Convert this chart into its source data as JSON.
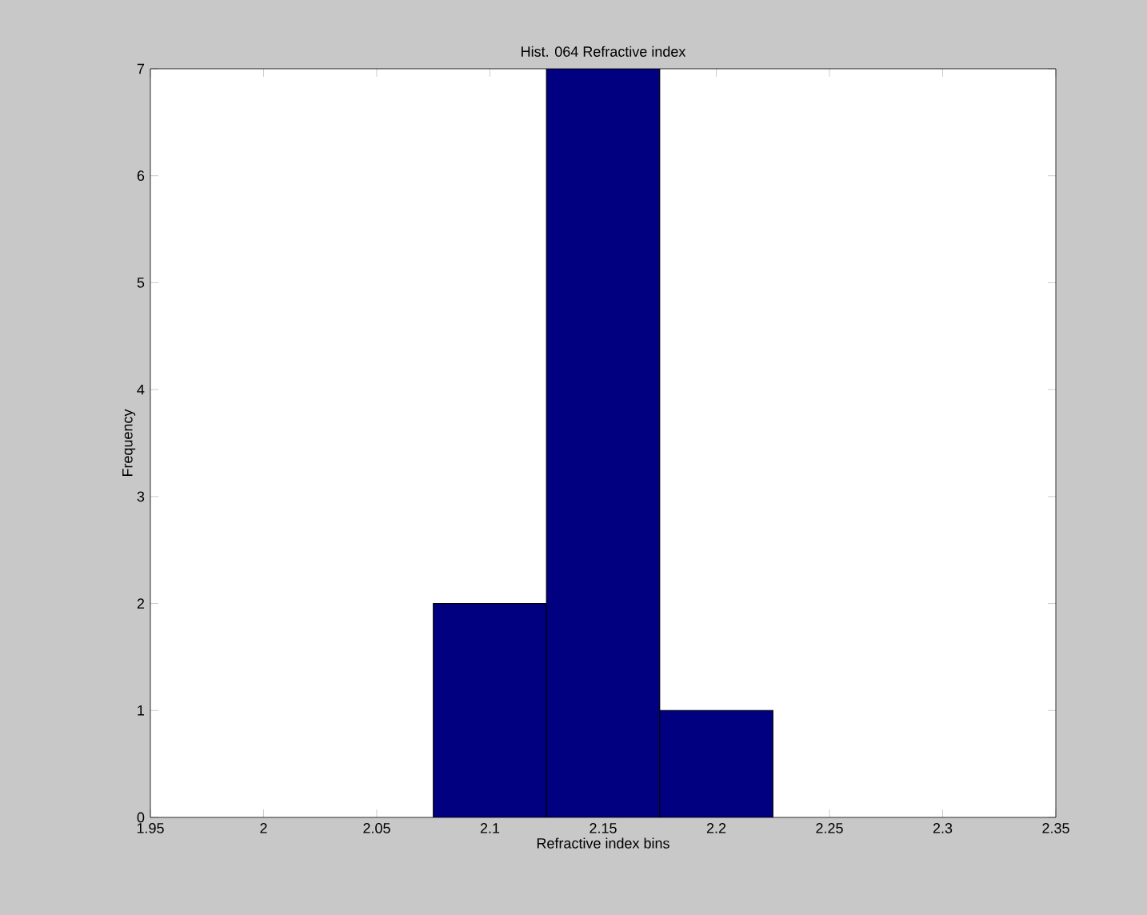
{
  "chart_data": {
    "type": "histogram",
    "title": "Hist. 064 Refractive index",
    "xlabel": "Refractive index bins",
    "ylabel": "Frequency",
    "bins": [
      2.075,
      2.125,
      2.175,
      2.225
    ],
    "values": [
      2,
      7,
      1
    ],
    "color": "#000080",
    "xlim": [
      1.95,
      2.35
    ],
    "ylim": [
      0,
      7
    ],
    "xticks": [
      1.95,
      2,
      2.05,
      2.1,
      2.15,
      2.2,
      2.25,
      2.3,
      2.35
    ],
    "yticks": [
      0,
      1,
      2,
      3,
      4,
      5,
      6,
      7
    ]
  }
}
